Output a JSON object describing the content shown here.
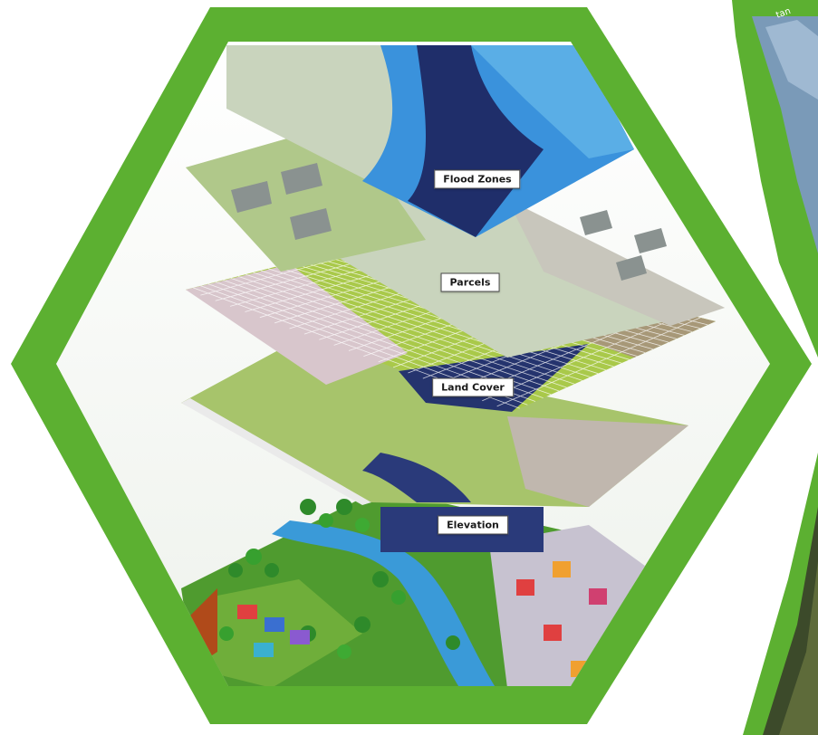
{
  "layers": [
    {
      "id": "flood",
      "label": "Flood Zones"
    },
    {
      "id": "parcels",
      "label": "Parcels"
    },
    {
      "id": "landcover",
      "label": "Land Cover"
    },
    {
      "id": "elevation",
      "label": "Elevation"
    }
  ],
  "right_inset": {
    "text": "tan"
  },
  "colors": {
    "hex_frame": "#5cb031",
    "water_light": "#3a92dc",
    "water_dark": "#1f2e6a",
    "land_pale": "#c9d4bd",
    "land_green": "#a7c46b",
    "grid_green": "#a9c94a",
    "grid_pink": "#d8c6cc",
    "grid_blue": "#25346e",
    "grid_tan": "#a79878",
    "terrain_green": "#4f9b2f"
  }
}
